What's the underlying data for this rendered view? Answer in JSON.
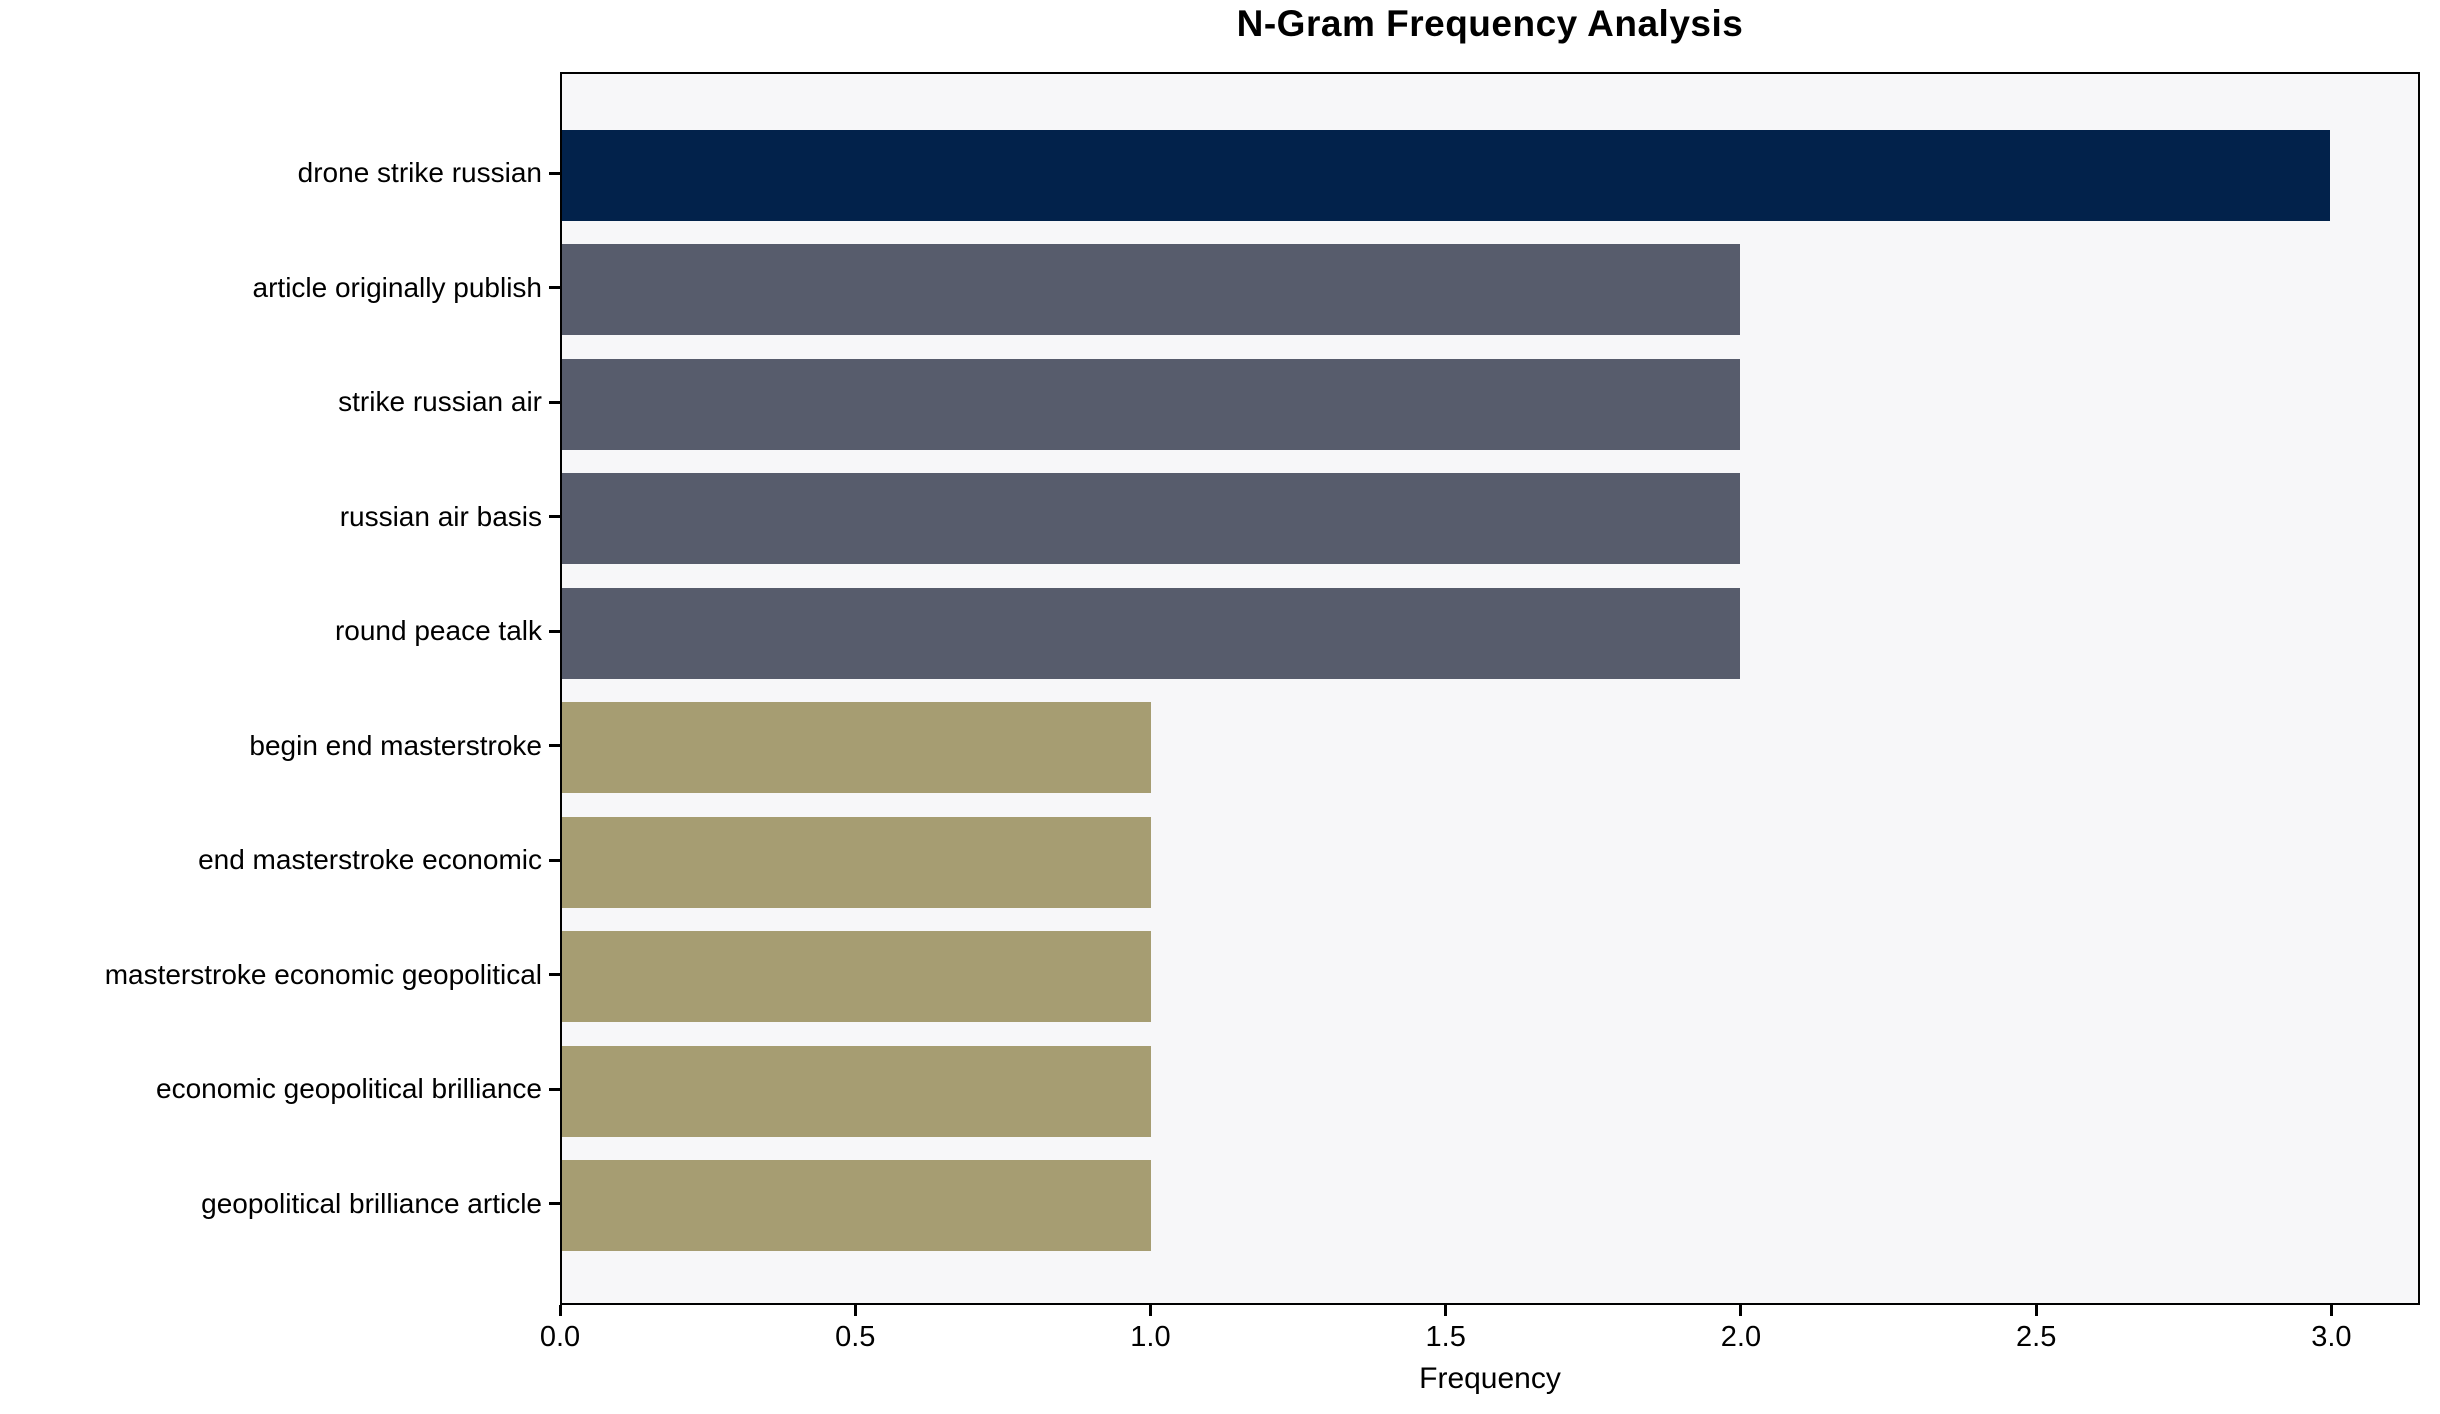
{
  "chart_data": {
    "type": "bar",
    "orientation": "horizontal",
    "title": "N-Gram Frequency Analysis",
    "xlabel": "Frequency",
    "ylabel": "",
    "categories": [
      "drone strike russian",
      "article originally publish",
      "strike russian air",
      "russian air basis",
      "round peace talk",
      "begin end masterstroke",
      "end masterstroke economic",
      "masterstroke economic geopolitical",
      "economic geopolitical brilliance",
      "geopolitical brilliance article"
    ],
    "values": [
      3,
      2,
      2,
      2,
      2,
      1,
      1,
      1,
      1,
      1
    ],
    "bar_colors": [
      "#02224B",
      "#575C6C",
      "#575C6C",
      "#575C6C",
      "#575C6C",
      "#A69D72",
      "#A69D72",
      "#A69D72",
      "#A69D72",
      "#A69D72"
    ],
    "x_ticks": [
      0.0,
      0.5,
      1.0,
      1.5,
      2.0,
      2.5,
      3.0
    ],
    "x_tick_labels": [
      "0.0",
      "0.5",
      "1.0",
      "1.5",
      "2.0",
      "2.5",
      "3.0"
    ],
    "xlim": [
      0,
      3.15
    ],
    "grid": false,
    "legend": null,
    "plot_bg": "#F7F7F9",
    "frame_color": "#000000",
    "text_color": "#000000"
  }
}
